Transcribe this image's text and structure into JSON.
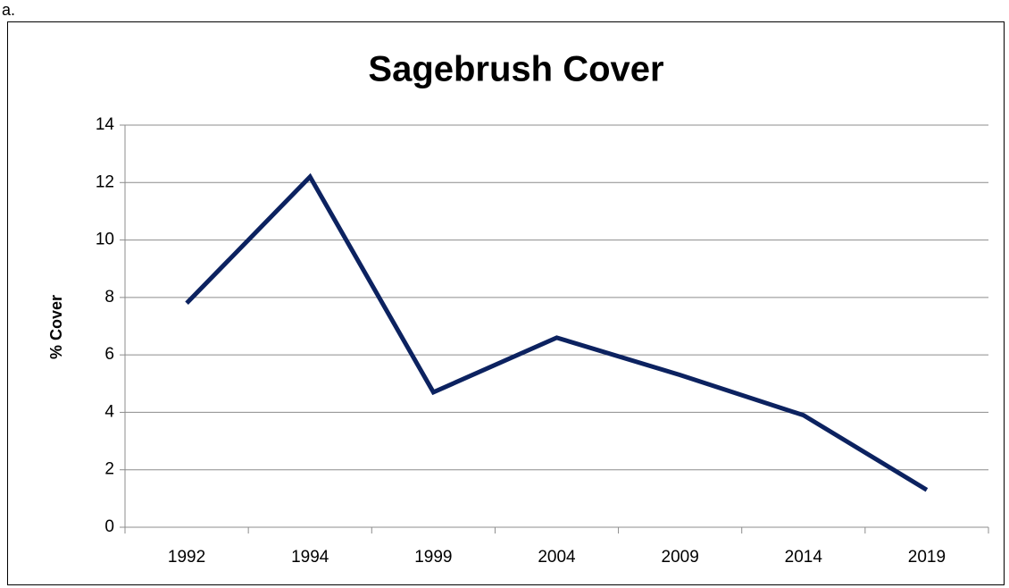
{
  "panel_label": "a.",
  "chart_data": {
    "type": "line",
    "title": "Sagebrush Cover",
    "y_label": "% Cover",
    "categories": [
      "1992",
      "1994",
      "1999",
      "2004",
      "2009",
      "2014",
      "2019"
    ],
    "values": [
      7.8,
      12.2,
      4.7,
      6.6,
      5.3,
      3.9,
      1.3
    ],
    "color": "#0c2260",
    "ylim": [
      0,
      14
    ],
    "yticks": [
      0,
      2,
      4,
      6,
      8,
      10,
      12,
      14
    ],
    "grid": true
  }
}
